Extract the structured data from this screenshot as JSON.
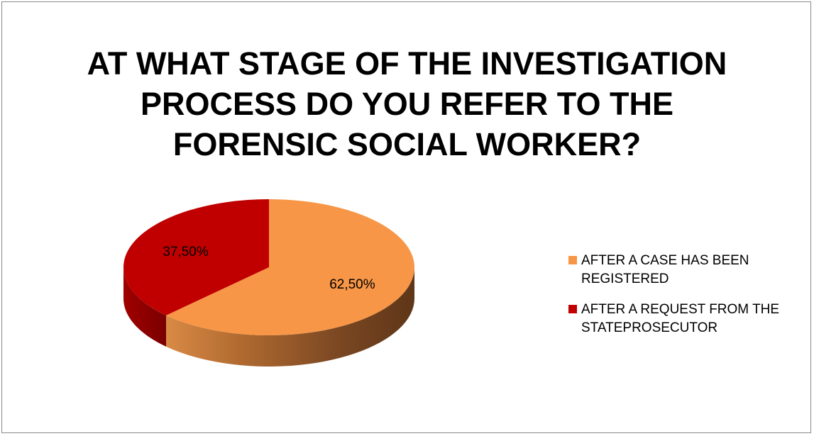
{
  "chart_data": {
    "type": "pie",
    "title": "AT WHAT STAGE OF THE INVESTIGATION PROCESS DO YOU REFER TO THE FORENSIC SOCIAL WORKER?",
    "slices": [
      {
        "label": "AFTER A CASE HAS BEEN REGISTERED",
        "value": 62.5,
        "data_label": "62,50%",
        "color": "#F79646"
      },
      {
        "label": "AFTER A REQUEST FROM THE STATEPROSECUTOR",
        "value": 37.5,
        "data_label": "37,50%",
        "color": "#C00000"
      }
    ],
    "style": "3d",
    "legend_position": "right"
  }
}
